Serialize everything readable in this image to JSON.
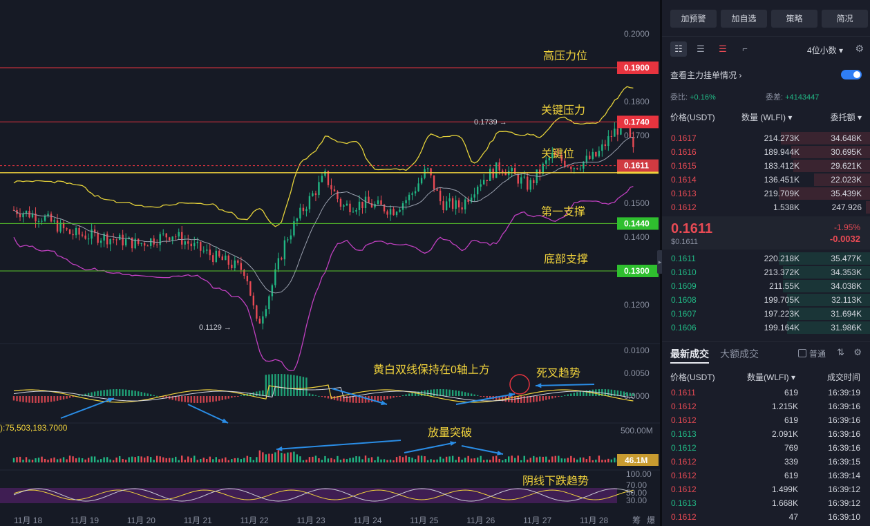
{
  "chart": {
    "price_ticks": [
      "0.2000",
      "0.1800",
      "0.1700",
      "0.1500",
      "0.1400",
      "0.1200"
    ],
    "level_labels": [
      {
        "value": "0.1900",
        "color": "#e8343f",
        "annotation": "高压力位"
      },
      {
        "value": "0.1740",
        "color": "#e8343f",
        "annotation": "关键压力"
      },
      {
        "value": "0.1611",
        "color": "#d03a41",
        "annotation": "关键位"
      },
      {
        "value": "0.1440",
        "color": "#2fbf2f",
        "annotation": "第一支撑"
      },
      {
        "value": "0.1300",
        "color": "#2fbf2f",
        "annotation": "底部支撑"
      }
    ],
    "high_marker": "0.1739 →",
    "low_marker": "0.1129 →",
    "macd_ticks": [
      "0.0100",
      "0.0050",
      "0.0000"
    ],
    "macd_annotations": [
      "黄白双线保持在0轴上方",
      "死叉趋势"
    ],
    "volume_label": "):75,503,193.7000",
    "volume_tick": "500.00M",
    "volume_current": "46.1M",
    "volume_annotation": "放量突破",
    "rsi_ticks": [
      "100.00",
      "70.00",
      "50.00",
      "30.00"
    ],
    "rsi_annotation": "阴线下跌趋势",
    "dates": [
      "11月 18",
      "11月 19",
      "11月 20",
      "11月 21",
      "11月 22",
      "11月 23",
      "11月 24",
      "11月 25",
      "11月 26",
      "11月 27",
      "11月 28"
    ],
    "bottom_right": [
      "筹",
      "爆"
    ],
    "colors": {
      "up": "#21b784",
      "down": "#e84a54",
      "annotation": "#f0d23c",
      "arrow": "#2a8de6",
      "support": "#59c82b",
      "resistance": "#e8343f"
    }
  },
  "panel": {
    "buttons": [
      "加预警",
      "加自选",
      "策略",
      "简况"
    ],
    "tools": [
      "orderbook-both-icon",
      "orderbook-bids-icon",
      "orderbook-asks-icon",
      "expand-icon"
    ],
    "decimals": "4位小数",
    "main_orders": "查看主力挂单情况",
    "ratio_label": "委比:",
    "ratio_value": "+0.16%",
    "diff_label": "委差:",
    "diff_value": "+4143447",
    "headers": {
      "price": "价格(USDT)",
      "qty": "数量 (WLFI)",
      "total": "委托额"
    },
    "asks": [
      {
        "price": "0.1617",
        "qty": "214.273K",
        "total": "34.648K",
        "depth": 0.43
      },
      {
        "price": "0.1616",
        "qty": "189.944K",
        "total": "30.695K",
        "depth": 0.38
      },
      {
        "price": "0.1615",
        "qty": "183.412K",
        "total": "29.621K",
        "depth": 0.37
      },
      {
        "price": "0.1614",
        "qty": "136.451K",
        "total": "22.023K",
        "depth": 0.27
      },
      {
        "price": "0.1613",
        "qty": "219.709K",
        "total": "35.439K",
        "depth": 0.44
      },
      {
        "price": "0.1612",
        "qty": "1.538K",
        "total": "247.926",
        "depth": 0.02
      }
    ],
    "last_price": "0.1611",
    "last_price_usd": "$0.1611",
    "change_pct": "-1.95%",
    "change_abs": "-0.0032",
    "bids": [
      {
        "price": "0.1611",
        "qty": "220.218K",
        "total": "35.477K",
        "depth": 0.44
      },
      {
        "price": "0.1610",
        "qty": "213.372K",
        "total": "34.353K",
        "depth": 0.42
      },
      {
        "price": "0.1609",
        "qty": "211.55K",
        "total": "34.038K",
        "depth": 0.42
      },
      {
        "price": "0.1608",
        "qty": "199.705K",
        "total": "32.113K",
        "depth": 0.4
      },
      {
        "price": "0.1607",
        "qty": "197.223K",
        "total": "31.694K",
        "depth": 0.39
      },
      {
        "price": "0.1606",
        "qty": "199.164K",
        "total": "31.986K",
        "depth": 0.4
      }
    ],
    "tabs": [
      "最新成交",
      "大额成交"
    ],
    "normal_label": "普通",
    "trade_headers": {
      "price": "价格(USDT)",
      "qty": "数量(WLFI)",
      "time": "成交时间"
    },
    "trades": [
      {
        "price": "0.1611",
        "qty": "619",
        "time": "16:39:19",
        "side": "sell"
      },
      {
        "price": "0.1612",
        "qty": "1.215K",
        "time": "16:39:16",
        "side": "sell"
      },
      {
        "price": "0.1612",
        "qty": "619",
        "time": "16:39:16",
        "side": "sell"
      },
      {
        "price": "0.1613",
        "qty": "2.091K",
        "time": "16:39:16",
        "side": "buy"
      },
      {
        "price": "0.1612",
        "qty": "769",
        "time": "16:39:16",
        "side": "buy"
      },
      {
        "price": "0.1612",
        "qty": "339",
        "time": "16:39:15",
        "side": "sell"
      },
      {
        "price": "0.1612",
        "qty": "619",
        "time": "16:39:14",
        "side": "sell"
      },
      {
        "price": "0.1612",
        "qty": "1.499K",
        "time": "16:39:12",
        "side": "sell"
      },
      {
        "price": "0.1613",
        "qty": "1.668K",
        "time": "16:39:12",
        "side": "buy"
      },
      {
        "price": "0.1612",
        "qty": "47",
        "time": "16:39:10",
        "side": "sell"
      }
    ]
  }
}
